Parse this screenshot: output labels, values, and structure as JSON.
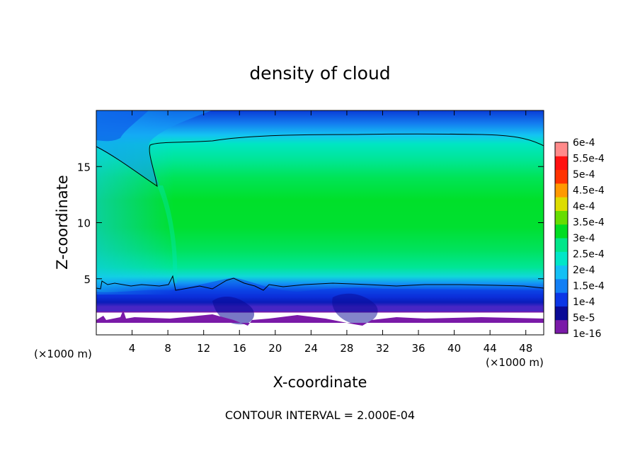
{
  "chart_data": {
    "type": "heatmap",
    "title": "density of cloud",
    "xlabel": "X-coordinate",
    "ylabel": "Z-coordinate",
    "x_unit_label": "(×1000 m)",
    "y_unit_label": "(×1000 m)",
    "xlim": [
      0,
      50
    ],
    "ylim": [
      0,
      20
    ],
    "x_ticks": [
      4,
      8,
      12,
      16,
      20,
      24,
      28,
      32,
      36,
      40,
      44,
      48
    ],
    "y_ticks": [
      5,
      10,
      15
    ],
    "contour_interval_text": "CONTOUR INTERVAL = 2.000E-04",
    "colorbar": {
      "levels": [
        "1e-16",
        "5e-5",
        "1e-4",
        "1.5e-4",
        "2e-4",
        "2.5e-4",
        "3e-4",
        "3.5e-4",
        "4e-4",
        "4.5e-4",
        "5e-4",
        "5.5e-4",
        "6e-4"
      ],
      "colors": [
        "#7a1aa8",
        "#0a0a96",
        "#0b36e6",
        "#127ff5",
        "#14c0f5",
        "#00e6c8",
        "#00e68a",
        "#00dd22",
        "#66dd00",
        "#dddd00",
        "#ff9900",
        "#ff3300",
        "#ff1111",
        "#ff8a8a"
      ]
    },
    "contour_level": "2e-4",
    "field_summary": [
      {
        "region": "z 0–1.8 (below cloud base, clear)",
        "value": "0"
      },
      {
        "region": "z 1.8–2.5 (cloud base)",
        "value": "1e-16 – 1e-4"
      },
      {
        "region": "z 2.5–4.5",
        "value": "1e-4 – 2e-4"
      },
      {
        "region": "z 4.5–17.5 core",
        "value": "2e-4 – 3.5e-4 (max ~3.3e-4 near z 10)"
      },
      {
        "region": "z 17.5–20 (top)",
        "value": "5e-5 – 2e-4"
      },
      {
        "region": "plume x 0–8, z 13–17",
        "value": "1.5e-4 – 2e-4"
      }
    ]
  }
}
